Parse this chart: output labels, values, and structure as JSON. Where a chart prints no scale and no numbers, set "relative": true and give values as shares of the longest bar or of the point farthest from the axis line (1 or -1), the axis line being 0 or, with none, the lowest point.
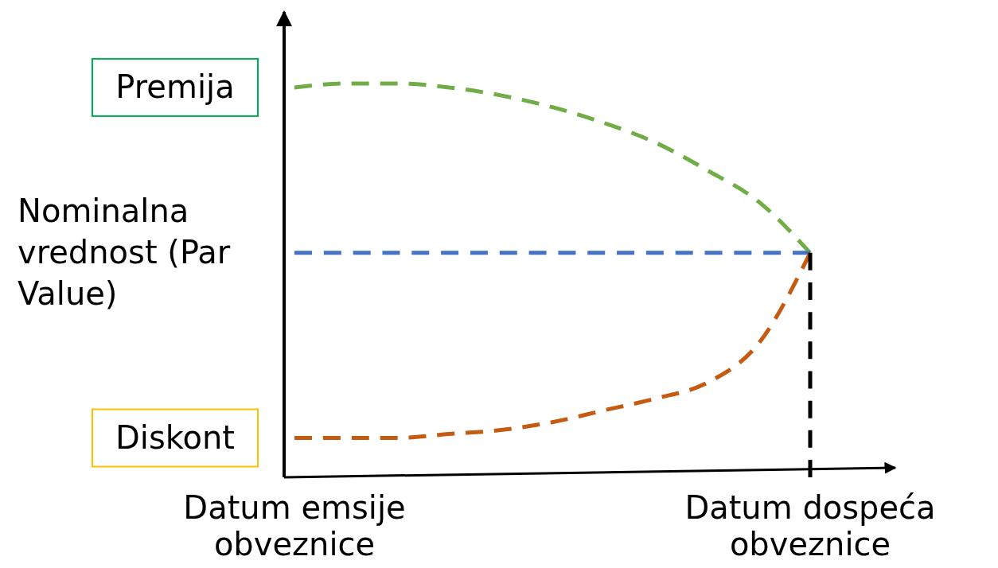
{
  "chart_data": {
    "type": "line",
    "relative": true,
    "line_style": "dashed",
    "tick_labels": "x",
    "categories": [
      "Datum emsije obveznice",
      null,
      null,
      null,
      null,
      null,
      null,
      null,
      null,
      null,
      "Datum dospeća obveznice"
    ],
    "series": [
      {
        "color": "#70ad47",
        "values": [
          0.99,
          1,
          1,
          0.99,
          0.97,
          0.94,
          0.9,
          0.85,
          0.78,
          0.7,
          0.57
        ]
      },
      {
        "color": "#4472c4",
        "values": [
          0.57,
          0.57,
          0.57,
          0.57,
          0.57,
          0.57,
          0.57,
          0.57,
          0.57,
          0.57,
          0.57
        ]
      },
      {
        "color": "#c55a11",
        "values": [
          0.1,
          0.1,
          0.1,
          0.11,
          0.12,
          0.14,
          0.17,
          0.2,
          0.24,
          0.34,
          0.57
        ]
      },
      {
        "color": "#000000",
        "x": [
          "Datum dospeća obveznice",
          "Datum dospeća obveznice"
        ],
        "values": [
          0,
          0.57
        ]
      }
    ],
    "annotations": [
      "Premija",
      "Nominalna vrednost (Par Value)",
      "Diskont"
    ]
  }
}
